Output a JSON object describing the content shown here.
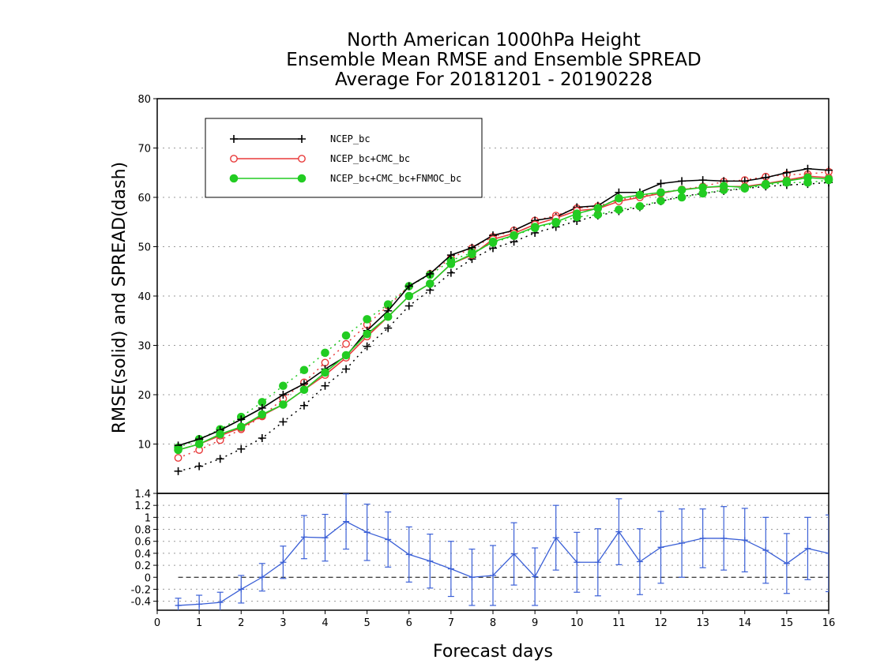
{
  "chart_data": [
    {
      "type": "line",
      "title": [
        "North American 1000hPa Height",
        "Ensemble Mean RMSE and Ensemble SPREAD",
        "Average For 20181201 - 20190228"
      ],
      "ylabel": "RMSE(solid) and SPREAD(dash)",
      "xlim": [
        0,
        16
      ],
      "ylim": [
        0,
        80
      ],
      "yticks": [
        10,
        20,
        30,
        40,
        50,
        60,
        70,
        80
      ],
      "grid": true,
      "legend_position": "top-left",
      "x": [
        0.5,
        1,
        1.5,
        2,
        2.5,
        3,
        3.5,
        4,
        4.5,
        5,
        5.5,
        6,
        6.5,
        7,
        7.5,
        8,
        8.5,
        9,
        9.5,
        10,
        10.5,
        11,
        11.5,
        12,
        12.5,
        13,
        13.5,
        14,
        14.5,
        15,
        15.5,
        16
      ],
      "series": [
        {
          "name": "NCEP_bc",
          "color": "#000000",
          "marker": "plus",
          "rmse": [
            9.7,
            11.0,
            12.8,
            15.0,
            17.3,
            20.0,
            22.2,
            25.2,
            27.8,
            33.0,
            37.0,
            42.0,
            44.5,
            48.3,
            49.8,
            52.3,
            53.3,
            55.3,
            56.0,
            58.0,
            58.3,
            61.0,
            61.0,
            62.8,
            63.3,
            63.5,
            63.3,
            63.3,
            64.0,
            65.0,
            65.8,
            65.5
          ],
          "spread": [
            4.5,
            5.5,
            7.0,
            9.0,
            11.2,
            14.5,
            17.8,
            21.8,
            25.2,
            29.8,
            33.5,
            38.0,
            41.2,
            44.7,
            47.5,
            49.7,
            51.0,
            52.8,
            54.0,
            55.2,
            56.3,
            57.2,
            58.0,
            59.2,
            60.2,
            60.8,
            61.3,
            61.8,
            62.2,
            62.5,
            62.7,
            63.0
          ]
        },
        {
          "name": "NCEP_bc+CMC_bc",
          "color": "#e83a3a",
          "marker": "open-circle",
          "rmse": [
            8.8,
            10.0,
            11.7,
            13.3,
            15.8,
            18.0,
            21.0,
            24.0,
            27.5,
            31.8,
            35.8,
            40.0,
            42.5,
            46.5,
            48.3,
            51.5,
            52.7,
            54.5,
            55.8,
            57.3,
            57.7,
            59.2,
            60.0,
            60.8,
            61.6,
            62.0,
            62.2,
            62.2,
            62.8,
            63.5,
            64.3,
            64.0
          ],
          "spread": [
            7.2,
            8.8,
            10.8,
            13.0,
            15.6,
            19.2,
            22.5,
            26.5,
            30.3,
            34.2,
            38.0,
            42.0,
            44.5,
            47.7,
            49.7,
            52.0,
            53.3,
            55.3,
            56.3,
            57.8,
            58.2,
            59.5,
            60.2,
            61.0,
            61.6,
            62.2,
            63.2,
            63.5,
            64.2,
            64.6,
            64.7,
            65.2
          ]
        },
        {
          "name": "NCEP_bc+CMC_bc+FNMOC_bc",
          "color": "#22cc22",
          "marker": "filled-circle",
          "rmse": [
            8.8,
            10.0,
            12.0,
            13.5,
            16.0,
            18.0,
            21.0,
            24.5,
            28.0,
            32.3,
            35.8,
            40.0,
            42.5,
            46.5,
            48.5,
            51.0,
            52.3,
            54.0,
            55.0,
            56.7,
            57.8,
            59.8,
            60.5,
            61.0,
            61.5,
            62.0,
            62.3,
            62.0,
            62.7,
            63.3,
            64.0,
            63.7
          ],
          "spread": [
            9.3,
            11.0,
            13.0,
            15.5,
            18.5,
            21.8,
            25.0,
            28.5,
            32.0,
            35.3,
            38.3,
            42.0,
            44.3,
            47.2,
            48.8,
            50.8,
            52.2,
            53.8,
            54.8,
            56.0,
            56.5,
            57.5,
            58.2,
            59.3,
            60.0,
            60.8,
            61.5,
            61.8,
            62.5,
            63.0,
            63.0,
            63.5
          ]
        }
      ]
    },
    {
      "type": "line",
      "xlabel": "Forecast days",
      "xlim": [
        0,
        16
      ],
      "xticks": [
        0,
        1,
        2,
        3,
        4,
        5,
        6,
        7,
        8,
        9,
        10,
        11,
        12,
        13,
        14,
        15,
        16
      ],
      "ylim": [
        -0.55,
        1.4
      ],
      "yticks": [
        -0.4,
        -0.2,
        0,
        0.2,
        0.4,
        0.6,
        0.8,
        1,
        1.2,
        1.4
      ],
      "ytick_labels": [
        "-0.4",
        "-0.2",
        "0",
        "0.2",
        "0.4",
        "0.6",
        "0.8",
        "1",
        "1.2",
        "1.4"
      ],
      "grid": true,
      "zero_line": "dashed",
      "series": [
        {
          "color": "#3a5fd6",
          "x": [
            0.5,
            1,
            1.5,
            2,
            2.5,
            3,
            3.5,
            4,
            4.5,
            5,
            5.5,
            6,
            6.5,
            7,
            7.5,
            8,
            8.5,
            9,
            9.5,
            10,
            10.5,
            11,
            11.5,
            12,
            12.5,
            13,
            13.5,
            14,
            14.5,
            15,
            15.5,
            16
          ],
          "values": [
            -0.47,
            -0.45,
            -0.42,
            -0.2,
            0.0,
            0.25,
            0.67,
            0.66,
            0.93,
            0.75,
            0.63,
            0.38,
            0.27,
            0.14,
            0.0,
            0.03,
            0.39,
            0.01,
            0.66,
            0.25,
            0.25,
            0.76,
            0.26,
            0.5,
            0.57,
            0.65,
            0.65,
            0.62,
            0.45,
            0.23,
            0.48,
            0.4
          ],
          "err": [
            0.12,
            0.15,
            0.17,
            0.23,
            0.23,
            0.27,
            0.36,
            0.39,
            0.46,
            0.47,
            0.46,
            0.46,
            0.45,
            0.46,
            0.47,
            0.5,
            0.52,
            0.48,
            0.54,
            0.5,
            0.56,
            0.55,
            0.55,
            0.6,
            0.57,
            0.49,
            0.53,
            0.53,
            0.55,
            0.5,
            0.52,
            0.64
          ]
        }
      ]
    }
  ]
}
